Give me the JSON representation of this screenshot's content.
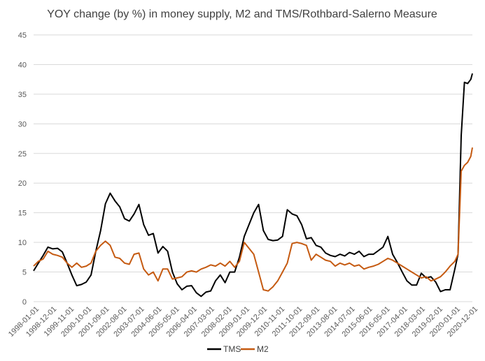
{
  "chart_data": {
    "type": "line",
    "title": "YOY change (by %) in money supply, M2 and TMS/Rothbard-Salerno Measure",
    "xlabel": "",
    "ylabel": "",
    "ylim": [
      0,
      45
    ],
    "yticks": [
      0,
      5,
      10,
      15,
      20,
      25,
      30,
      35,
      40,
      45
    ],
    "grid": true,
    "legend": "bottom-center",
    "x_start": "1998-01",
    "x_end": "2020-12",
    "xtick_labels": [
      "1998-01-01",
      "1998-12-01",
      "1999-11-01",
      "2000-10-01",
      "2001-09-01",
      "2002-08-01",
      "2003-07-01",
      "2004-06-01",
      "2005-05-01",
      "2006-04-01",
      "2007-03-01",
      "2008-02-01",
      "2009-01-01",
      "2009-12-01",
      "2010-11-01",
      "2011-10-01",
      "2012-09-01",
      "2013-08-01",
      "2014-07-01",
      "2015-06-01",
      "2016-05-01",
      "2017-04-01",
      "2018-03-01",
      "2019-02-01",
      "2020-01-01",
      "2020-12-01"
    ],
    "series": [
      {
        "name": "TMS",
        "color": "#000000",
        "points": [
          [
            "1998-01",
            5.2
          ],
          [
            "1998-04",
            6.5
          ],
          [
            "1998-07",
            7.8
          ],
          [
            "1998-10",
            9.2
          ],
          [
            "1999-01",
            8.9
          ],
          [
            "1999-04",
            9.0
          ],
          [
            "1999-07",
            8.4
          ],
          [
            "1999-10",
            6.5
          ],
          [
            "2000-01",
            4.5
          ],
          [
            "2000-04",
            2.7
          ],
          [
            "2000-07",
            2.9
          ],
          [
            "2000-10",
            3.3
          ],
          [
            "2001-01",
            4.5
          ],
          [
            "2001-04",
            8.5
          ],
          [
            "2001-07",
            12.0
          ],
          [
            "2001-10",
            16.5
          ],
          [
            "2002-01",
            18.3
          ],
          [
            "2002-04",
            17.0
          ],
          [
            "2002-07",
            16.0
          ],
          [
            "2002-10",
            14.0
          ],
          [
            "2003-01",
            13.6
          ],
          [
            "2003-04",
            14.8
          ],
          [
            "2003-07",
            16.4
          ],
          [
            "2003-10",
            13.0
          ],
          [
            "2004-01",
            11.2
          ],
          [
            "2004-04",
            11.5
          ],
          [
            "2004-07",
            8.2
          ],
          [
            "2004-10",
            9.3
          ],
          [
            "2005-01",
            8.5
          ],
          [
            "2005-04",
            5.0
          ],
          [
            "2005-07",
            3.0
          ],
          [
            "2005-10",
            2.0
          ],
          [
            "2006-01",
            2.6
          ],
          [
            "2006-04",
            2.7
          ],
          [
            "2006-07",
            1.5
          ],
          [
            "2006-10",
            0.9
          ],
          [
            "2007-01",
            1.6
          ],
          [
            "2007-04",
            1.8
          ],
          [
            "2007-07",
            3.5
          ],
          [
            "2007-10",
            4.5
          ],
          [
            "2008-01",
            3.2
          ],
          [
            "2008-04",
            5.0
          ],
          [
            "2008-07",
            5.0
          ],
          [
            "2008-10",
            7.5
          ],
          [
            "2009-01",
            11.0
          ],
          [
            "2009-04",
            13.0
          ],
          [
            "2009-07",
            15.0
          ],
          [
            "2009-10",
            16.4
          ],
          [
            "2010-01",
            12.0
          ],
          [
            "2010-04",
            10.5
          ],
          [
            "2010-07",
            10.3
          ],
          [
            "2010-10",
            10.4
          ],
          [
            "2011-01",
            11.0
          ],
          [
            "2011-04",
            15.5
          ],
          [
            "2011-07",
            14.8
          ],
          [
            "2011-10",
            14.5
          ],
          [
            "2012-01",
            13.0
          ],
          [
            "2012-04",
            10.6
          ],
          [
            "2012-07",
            10.8
          ],
          [
            "2012-10",
            9.5
          ],
          [
            "2013-01",
            9.2
          ],
          [
            "2013-04",
            8.2
          ],
          [
            "2013-07",
            7.8
          ],
          [
            "2013-10",
            7.6
          ],
          [
            "2014-01",
            8.0
          ],
          [
            "2014-04",
            7.7
          ],
          [
            "2014-07",
            8.3
          ],
          [
            "2014-10",
            8.0
          ],
          [
            "2015-01",
            8.5
          ],
          [
            "2015-04",
            7.6
          ],
          [
            "2015-07",
            8.0
          ],
          [
            "2015-10",
            8.0
          ],
          [
            "2016-01",
            8.6
          ],
          [
            "2016-04",
            9.2
          ],
          [
            "2016-07",
            11.0
          ],
          [
            "2016-10",
            8.0
          ],
          [
            "2017-01",
            6.6
          ],
          [
            "2017-04",
            5.0
          ],
          [
            "2017-07",
            3.5
          ],
          [
            "2017-10",
            2.8
          ],
          [
            "2018-01",
            2.8
          ],
          [
            "2018-04",
            4.8
          ],
          [
            "2018-07",
            4.0
          ],
          [
            "2018-10",
            4.2
          ],
          [
            "2019-01",
            3.3
          ],
          [
            "2019-04",
            1.7
          ],
          [
            "2019-07",
            2.0
          ],
          [
            "2019-10",
            2.0
          ],
          [
            "2020-01",
            5.5
          ],
          [
            "2020-03",
            8.0
          ],
          [
            "2020-05",
            28.0
          ],
          [
            "2020-07",
            37.0
          ],
          [
            "2020-09",
            36.8
          ],
          [
            "2020-11",
            37.5
          ],
          [
            "2020-12",
            38.5
          ]
        ]
      },
      {
        "name": "M2",
        "color": "#c55a11",
        "points": [
          [
            "1998-01",
            6.0
          ],
          [
            "1998-04",
            6.8
          ],
          [
            "1998-07",
            7.2
          ],
          [
            "1998-10",
            8.5
          ],
          [
            "1999-01",
            8.0
          ],
          [
            "1999-04",
            7.8
          ],
          [
            "1999-07",
            7.5
          ],
          [
            "1999-10",
            6.5
          ],
          [
            "2000-01",
            5.8
          ],
          [
            "2000-04",
            6.5
          ],
          [
            "2000-07",
            5.8
          ],
          [
            "2000-10",
            6.0
          ],
          [
            "2001-01",
            6.5
          ],
          [
            "2001-04",
            8.5
          ],
          [
            "2001-07",
            9.5
          ],
          [
            "2001-10",
            10.2
          ],
          [
            "2002-01",
            9.5
          ],
          [
            "2002-04",
            7.5
          ],
          [
            "2002-07",
            7.3
          ],
          [
            "2002-10",
            6.5
          ],
          [
            "2003-01",
            6.3
          ],
          [
            "2003-04",
            8.0
          ],
          [
            "2003-07",
            8.2
          ],
          [
            "2003-10",
            5.5
          ],
          [
            "2004-01",
            4.5
          ],
          [
            "2004-04",
            5.0
          ],
          [
            "2004-07",
            3.5
          ],
          [
            "2004-10",
            5.5
          ],
          [
            "2005-01",
            5.5
          ],
          [
            "2005-04",
            3.8
          ],
          [
            "2005-07",
            4.0
          ],
          [
            "2005-10",
            4.2
          ],
          [
            "2006-01",
            5.0
          ],
          [
            "2006-04",
            5.2
          ],
          [
            "2006-07",
            5.0
          ],
          [
            "2006-10",
            5.5
          ],
          [
            "2007-01",
            5.8
          ],
          [
            "2007-04",
            6.2
          ],
          [
            "2007-07",
            6.0
          ],
          [
            "2007-10",
            6.5
          ],
          [
            "2008-01",
            6.0
          ],
          [
            "2008-04",
            6.8
          ],
          [
            "2008-07",
            5.8
          ],
          [
            "2008-10",
            6.8
          ],
          [
            "2009-01",
            10.0
          ],
          [
            "2009-04",
            9.0
          ],
          [
            "2009-07",
            8.0
          ],
          [
            "2009-10",
            5.0
          ],
          [
            "2010-01",
            2.0
          ],
          [
            "2010-04",
            1.8
          ],
          [
            "2010-07",
            2.5
          ],
          [
            "2010-10",
            3.5
          ],
          [
            "2011-01",
            5.0
          ],
          [
            "2011-04",
            6.5
          ],
          [
            "2011-07",
            9.8
          ],
          [
            "2011-10",
            10.0
          ],
          [
            "2012-01",
            9.8
          ],
          [
            "2012-04",
            9.5
          ],
          [
            "2012-07",
            7.0
          ],
          [
            "2012-10",
            8.0
          ],
          [
            "2013-01",
            7.5
          ],
          [
            "2013-04",
            7.0
          ],
          [
            "2013-07",
            6.8
          ],
          [
            "2013-10",
            6.0
          ],
          [
            "2014-01",
            6.5
          ],
          [
            "2014-04",
            6.2
          ],
          [
            "2014-07",
            6.5
          ],
          [
            "2014-10",
            6.0
          ],
          [
            "2015-01",
            6.2
          ],
          [
            "2015-04",
            5.5
          ],
          [
            "2015-07",
            5.8
          ],
          [
            "2015-10",
            6.0
          ],
          [
            "2016-01",
            6.3
          ],
          [
            "2016-04",
            6.8
          ],
          [
            "2016-07",
            7.3
          ],
          [
            "2016-10",
            7.0
          ],
          [
            "2017-01",
            6.5
          ],
          [
            "2017-04",
            6.0
          ],
          [
            "2017-07",
            5.5
          ],
          [
            "2017-10",
            5.0
          ],
          [
            "2018-01",
            4.5
          ],
          [
            "2018-04",
            4.0
          ],
          [
            "2018-07",
            4.2
          ],
          [
            "2018-10",
            3.5
          ],
          [
            "2019-01",
            3.8
          ],
          [
            "2019-04",
            4.2
          ],
          [
            "2019-07",
            5.0
          ],
          [
            "2019-10",
            6.0
          ],
          [
            "2020-01",
            6.8
          ],
          [
            "2020-03",
            8.0
          ],
          [
            "2020-05",
            22.0
          ],
          [
            "2020-07",
            23.0
          ],
          [
            "2020-09",
            23.5
          ],
          [
            "2020-11",
            24.5
          ],
          [
            "2020-12",
            26.0
          ]
        ]
      }
    ]
  }
}
